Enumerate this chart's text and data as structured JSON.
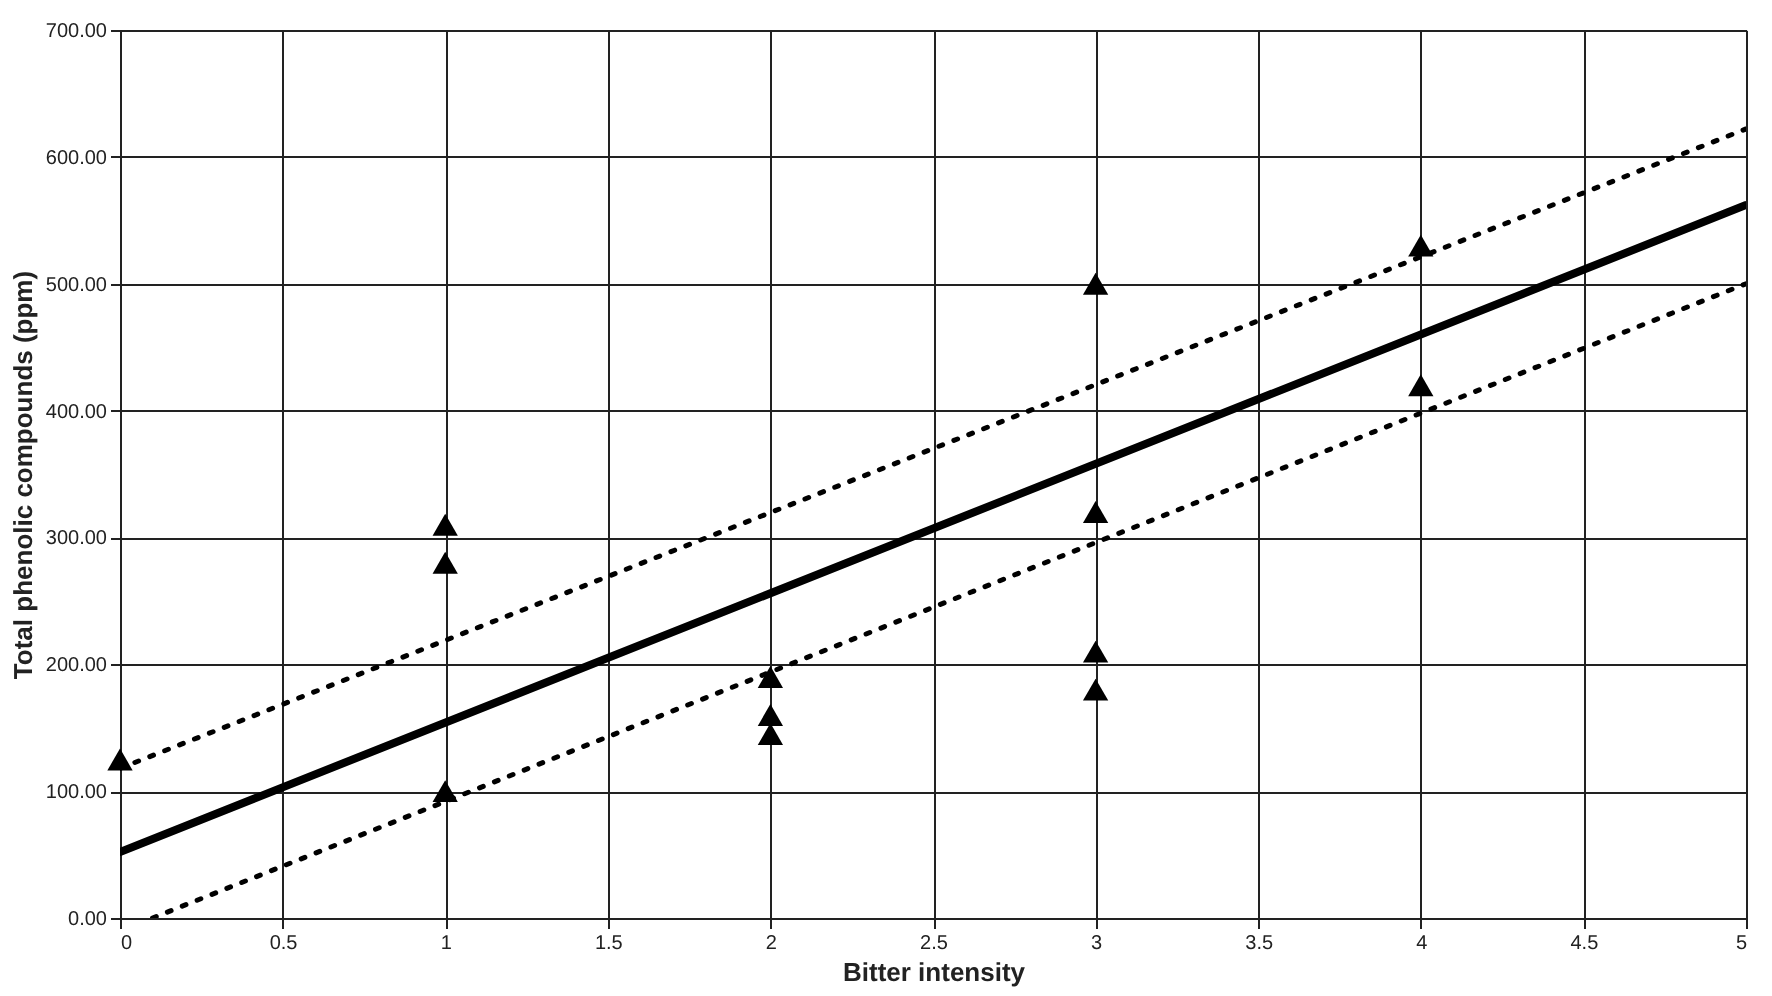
{
  "chart_data": {
    "type": "scatter",
    "xlabel": "Bitter intensity",
    "ylabel": "Total phenolic compounds (ppm)",
    "xlim": [
      0,
      5
    ],
    "xticks": [
      0,
      0.5,
      1,
      1.5,
      2,
      2.5,
      3,
      3.5,
      4,
      4.5,
      5
    ],
    "ylim": [
      0,
      700
    ],
    "yticks": [
      {
        "value": 0,
        "label": "0.00"
      },
      {
        "value": 100,
        "label": "100.00"
      },
      {
        "value": 200,
        "label": "200.00"
      },
      {
        "value": 300,
        "label": "300.00"
      },
      {
        "value": 400,
        "label": "400.00"
      },
      {
        "value": 500,
        "label": "500.00"
      },
      {
        "value": 600,
        "label": "600.00"
      },
      {
        "value": 700,
        "label": "700.00"
      }
    ],
    "grid": true,
    "series": [
      {
        "type": "scatter",
        "color": "#000000",
        "marker": "triangle",
        "x": [
          0,
          1,
          1,
          1,
          2,
          2,
          2,
          3,
          3,
          3,
          3,
          4,
          4
        ],
        "values": [
          125,
          310,
          280,
          100,
          190,
          160,
          145,
          500,
          320,
          210,
          180,
          530,
          420
        ]
      },
      {
        "type": "line",
        "color": "#000000",
        "line_style": "solid",
        "x": [
          0,
          5
        ],
        "values": [
          52,
          562
        ]
      },
      {
        "type": "line",
        "color": "#000000",
        "line_style": "dotted",
        "x": [
          0,
          5
        ],
        "values": [
          118,
          622
        ]
      },
      {
        "type": "line",
        "color": "#000000",
        "line_style": "dotted",
        "x": [
          0.1,
          5
        ],
        "values": [
          0,
          500
        ]
      }
    ]
  }
}
